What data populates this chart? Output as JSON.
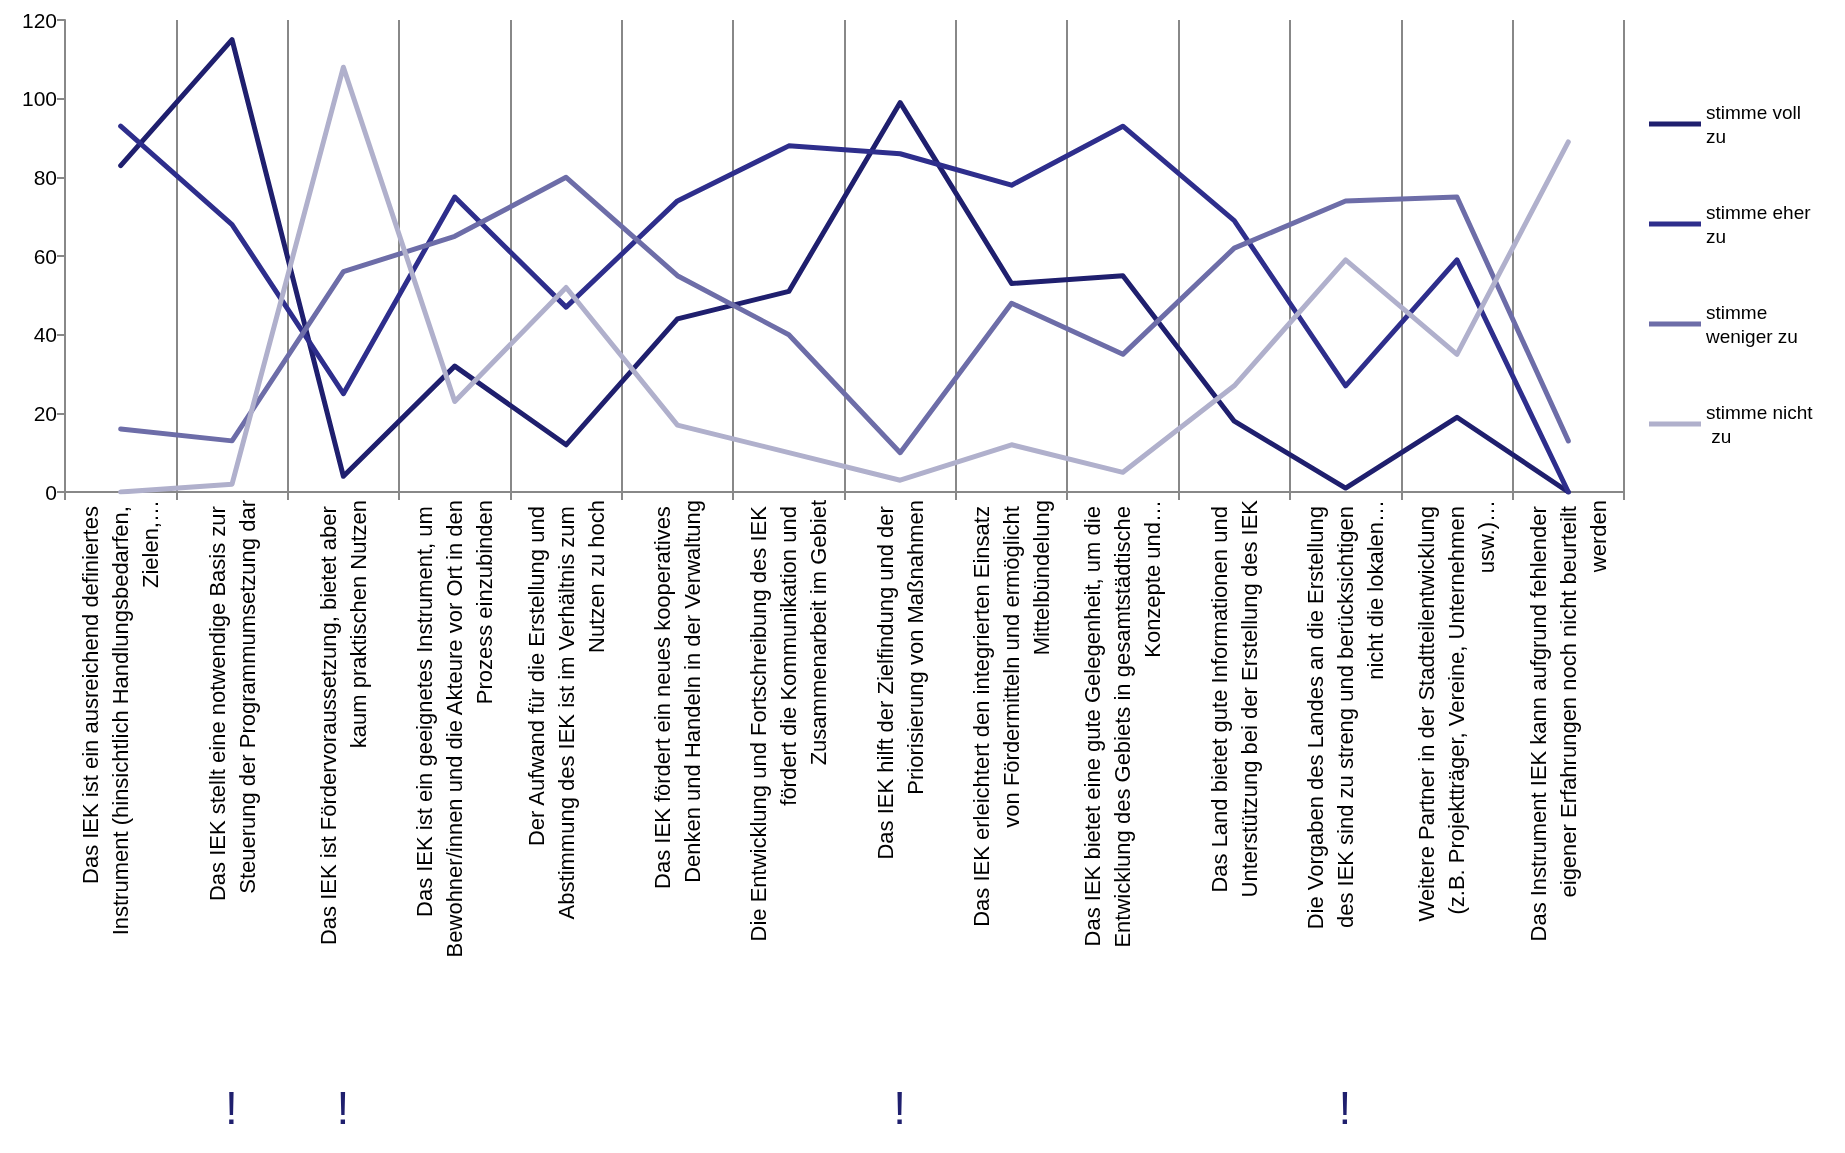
{
  "chart_data": {
    "type": "line",
    "categories": [
      "Das IEK ist ein ausreichend definiertes Instrument (hinsichtlich Handlungsbedarfen, Zielen,…",
      "Das IEK stellt eine notwendige Basis zur Steuerung der Programmumsetzung dar",
      "Das IEK ist Fördervoraussetzung, bietet aber kaum praktischen Nutzen",
      "Das IEK ist ein geeignetes Instrument, um Bewohner/innen und die Akteure vor Ort in den Prozess einzubinden",
      "Der Aufwand für die Erstellung und Abstimmung des IEK ist im Verhältnis zum Nutzen zu hoch",
      "Das IEK fördert ein neues kooperatives Denken und Handeln in der Verwaltung",
      "Die Entwicklung und Fortschreibung des IEK fördert die Kommunikation und Zusammenarbeit im Gebiet",
      "Das IEK hilft der Zielfindung und der Priorisierung von Maßnahmen",
      "Das IEK erleichtert den integrierten Einsatz von Fördermitteln und ermöglicht Mittelbündelung",
      "Das IEK bietet eine gute Gelegenheit, um die Entwicklung des Gebiets in gesamtstädtische Konzepte und…",
      "Das Land bietet gute Informationen und Unterstützung bei der Erstellung des IEK",
      "Die Vorgaben des Landes an die Erstellung des IEK sind zu streng und berücksichtigen nicht die lokalen…",
      "Weitere Partner in der Stadtteilentwicklung (z.B. Projektträger, Vereine, Unternehmen usw.)…",
      "Das Instrument IEK kann aufgrund fehlender eigener Erfahrungen noch nicht beurteilt werden"
    ],
    "series": [
      {
        "name": "stimme voll zu",
        "color": "#1f1f6e",
        "values": [
          83,
          115,
          4,
          32,
          12,
          44,
          51,
          99,
          53,
          55,
          18,
          1,
          19,
          0
        ]
      },
      {
        "name": "stimme eher zu",
        "color": "#2e2e8c",
        "values": [
          93,
          68,
          25,
          75,
          47,
          74,
          88,
          86,
          78,
          93,
          69,
          27,
          59,
          0
        ]
      },
      {
        "name": "stimme weniger zu",
        "color": "#6d6da8",
        "values": [
          16,
          13,
          56,
          65,
          80,
          55,
          40,
          10,
          48,
          35,
          62,
          74,
          75,
          13
        ]
      },
      {
        "name": "stimme nicht zu",
        "color": "#b0b0cc",
        "values": [
          0,
          2,
          108,
          23,
          52,
          17,
          10,
          3,
          12,
          5,
          27,
          59,
          35,
          89
        ]
      }
    ],
    "ylim": [
      0,
      120
    ],
    "yticks": [
      0,
      20,
      40,
      60,
      80,
      100,
      120
    ],
    "grid": "x",
    "legend": "right",
    "marker": "none",
    "line_style": "solid",
    "annotations": [
      "!",
      "!",
      "!",
      "!"
    ]
  }
}
